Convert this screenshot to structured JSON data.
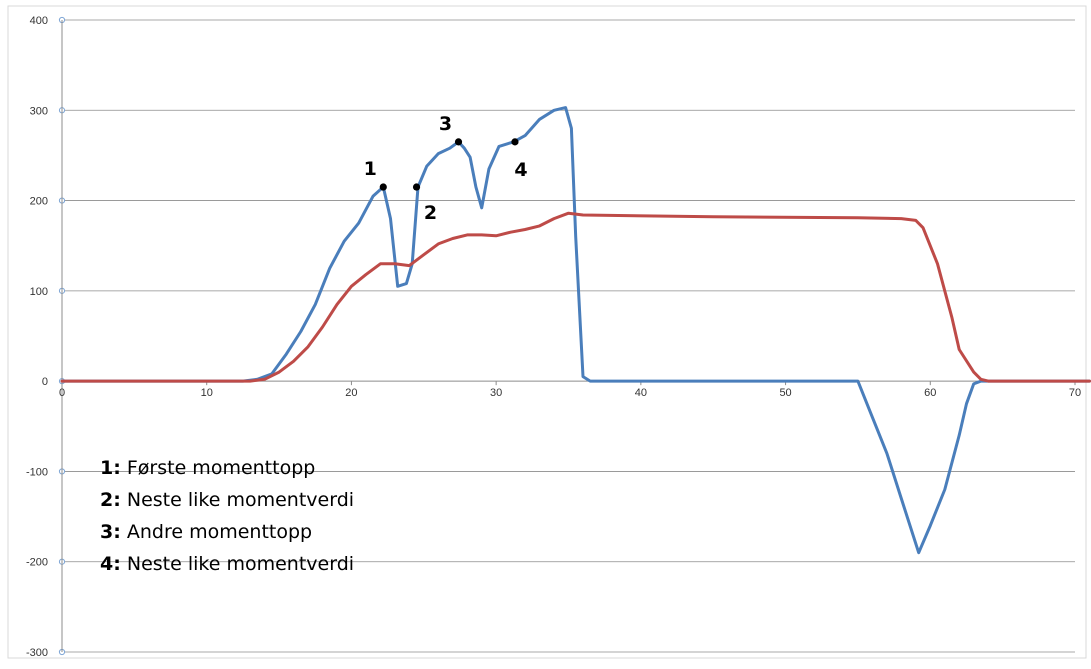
{
  "chart_data": {
    "type": "line",
    "title": "",
    "xlabel": "",
    "ylabel": "",
    "xlim": [
      0,
      70
    ],
    "ylim": [
      -300,
      400
    ],
    "x_ticks": [
      0,
      10,
      20,
      30,
      40,
      50,
      60,
      70
    ],
    "y_ticks": [
      -300,
      -200,
      -100,
      0,
      100,
      200,
      300,
      400
    ],
    "grid": "horizontal",
    "series": [
      {
        "color": "#4a7ebb",
        "points": [
          [
            0,
            0
          ],
          [
            10,
            0
          ],
          [
            12.5,
            0
          ],
          [
            13.5,
            2
          ],
          [
            14.5,
            8
          ],
          [
            15.5,
            30
          ],
          [
            16.5,
            55
          ],
          [
            17.5,
            85
          ],
          [
            18.5,
            125
          ],
          [
            19.5,
            155
          ],
          [
            20.5,
            175
          ],
          [
            21.5,
            205
          ],
          [
            22.2,
            215
          ],
          [
            22.7,
            180
          ],
          [
            23.2,
            105
          ],
          [
            23.8,
            108
          ],
          [
            24.2,
            130
          ],
          [
            24.6,
            215
          ],
          [
            25.2,
            238
          ],
          [
            26,
            252
          ],
          [
            26.8,
            258
          ],
          [
            27.4,
            265
          ],
          [
            27.8,
            258
          ],
          [
            28.2,
            248
          ],
          [
            28.6,
            215
          ],
          [
            29,
            192
          ],
          [
            29.5,
            235
          ],
          [
            30.2,
            260
          ],
          [
            31.2,
            265
          ],
          [
            32,
            272
          ],
          [
            33,
            290
          ],
          [
            34,
            300
          ],
          [
            34.8,
            303
          ],
          [
            35.2,
            280
          ],
          [
            35.5,
            160
          ],
          [
            36,
            5
          ],
          [
            36.5,
            0
          ],
          [
            55,
            0
          ],
          [
            56,
            -40
          ],
          [
            57,
            -80
          ],
          [
            58,
            -130
          ],
          [
            59.2,
            -190
          ],
          [
            60,
            -160
          ],
          [
            61,
            -120
          ],
          [
            62,
            -60
          ],
          [
            62.5,
            -25
          ],
          [
            63,
            -3
          ],
          [
            63.5,
            0
          ],
          [
            71,
            0
          ]
        ]
      },
      {
        "color": "#be4b48",
        "points": [
          [
            0,
            0
          ],
          [
            13,
            0
          ],
          [
            14,
            2
          ],
          [
            15,
            10
          ],
          [
            16,
            22
          ],
          [
            17,
            38
          ],
          [
            18,
            60
          ],
          [
            19,
            85
          ],
          [
            20,
            105
          ],
          [
            21,
            118
          ],
          [
            22,
            130
          ],
          [
            23,
            130
          ],
          [
            24,
            128
          ],
          [
            25,
            140
          ],
          [
            26,
            152
          ],
          [
            27,
            158
          ],
          [
            28,
            162
          ],
          [
            29,
            162
          ],
          [
            30,
            161
          ],
          [
            31,
            165
          ],
          [
            32,
            168
          ],
          [
            33,
            172
          ],
          [
            34,
            180
          ],
          [
            35,
            186
          ],
          [
            36,
            184
          ],
          [
            45,
            182
          ],
          [
            55,
            181
          ],
          [
            58,
            180
          ],
          [
            59,
            178
          ],
          [
            59.5,
            170
          ],
          [
            60.5,
            130
          ],
          [
            61.5,
            70
          ],
          [
            62,
            35
          ],
          [
            63,
            10
          ],
          [
            63.5,
            2
          ],
          [
            64,
            0
          ],
          [
            71,
            0
          ]
        ]
      }
    ],
    "annotations": [
      {
        "label": "1",
        "x": 22.2,
        "y": 215,
        "label_pos": "above-left"
      },
      {
        "label": "2",
        "x": 24.5,
        "y": 215,
        "label_pos": "below-right"
      },
      {
        "label": "3",
        "x": 27.4,
        "y": 265,
        "label_pos": "above-left"
      },
      {
        "label": "4",
        "x": 31.3,
        "y": 265,
        "label_pos": "below"
      }
    ],
    "legend": {
      "placement": "bottom-left",
      "entries": [
        {
          "key": "1:",
          "text": " Første momenttopp"
        },
        {
          "key": "2:",
          "text": " Neste like momentverdi"
        },
        {
          "key": "3:",
          "text": " Andre momenttopp"
        },
        {
          "key": "4:",
          "text": " Neste like momentverdi"
        }
      ]
    }
  }
}
